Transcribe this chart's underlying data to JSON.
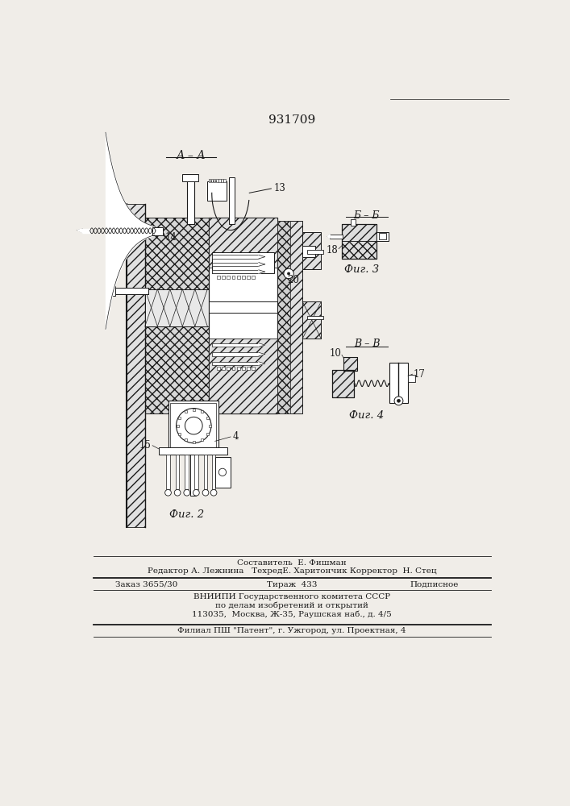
{
  "patent_number": "931709",
  "bg": "#f0ede8",
  "lc": "#1a1a1a",
  "section_AA": "А – А",
  "section_BB": "Б – Б",
  "section_VV": "В – В",
  "fig2": "Фиг. 2",
  "fig3": "Фиг. 3",
  "fig4": "Фиг. 4",
  "footer": {
    "line1": "Составитель  Е. Фишман",
    "line2": "Редактор А. Лежнина   ТехредЕ. Харитончик Корректор  Н. Стец",
    "zak": "Заказ 3655/30",
    "tir": "Тираж  433",
    "pod": "Подписное",
    "vn1": "ВНИИПИ Государственного комитета СССР",
    "vn2": "по делам изобретений и открытий",
    "vn3": "113035,  Москва, Ж-35, Раушская наб., д. 4/5",
    "fil": "Филиал ПШ \"Патент\", г. Ужгород, ул. Проектная, 4"
  }
}
